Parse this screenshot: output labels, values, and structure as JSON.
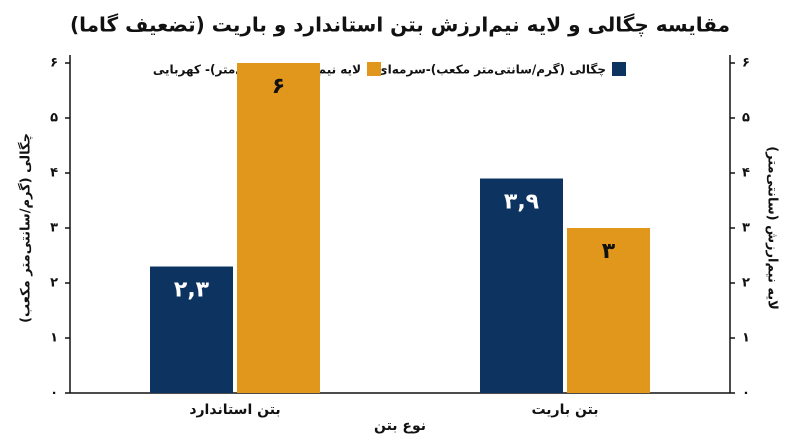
{
  "chart_data": {
    "type": "bar",
    "title": "مقایسه چگالی و لایه نیم‌ارزش بتن استاندارد و باریت (تضعیف گاما)",
    "x_label": "نوع بتن",
    "y_label": "چگالی (گرم/سانتی‌متر مکعب)",
    "y2_label": "لایه نیم‌ارزش (سانتی‌متر)",
    "categories": [
      "بتن استاندارد",
      "بتن باریت"
    ],
    "series": [
      {
        "name": "چگالی (گرم/سانتی‌متر مکعب)-سرمه‌ای",
        "color": "#0d3461",
        "values": [
          2.3,
          3.9
        ],
        "value_labels": [
          "۲,۳",
          "۳,۹"
        ]
      },
      {
        "name": "لایه نیم‌ارزش (سانتی‌متر)- کهربایی",
        "color": "#e0971c",
        "values": [
          6,
          3
        ],
        "value_labels": [
          "۶",
          "۳"
        ],
        "axis": "y2"
      }
    ],
    "ylim": [
      0,
      6
    ],
    "yticks": [
      {
        "value": 0,
        "label": "۰"
      },
      {
        "value": 1,
        "label": "۱"
      },
      {
        "value": 2,
        "label": "۲"
      },
      {
        "value": 3,
        "label": "۳"
      },
      {
        "value": 4,
        "label": "۴"
      },
      {
        "value": 5,
        "label": "۵"
      },
      {
        "value": 6,
        "label": "۶"
      }
    ],
    "y2lim": [
      0,
      6
    ],
    "y2ticks": [
      {
        "value": 0,
        "label": "۰"
      },
      {
        "value": 1,
        "label": "۱"
      },
      {
        "value": 2,
        "label": "۲"
      },
      {
        "value": 3,
        "label": "۳"
      },
      {
        "value": 4,
        "label": "۴"
      },
      {
        "value": 5,
        "label": "۵"
      },
      {
        "value": 6,
        "label": "۶"
      }
    ],
    "grid": false
  }
}
